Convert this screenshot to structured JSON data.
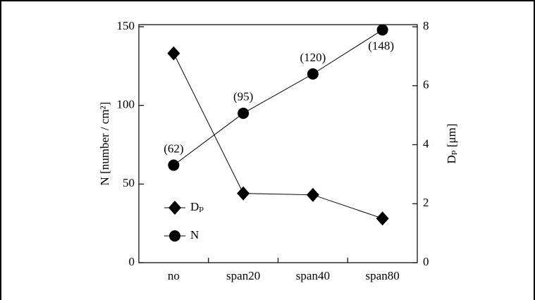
{
  "chart_data": {
    "type": "line",
    "categories": [
      "no",
      "span20",
      "span40",
      "span80"
    ],
    "series": [
      {
        "name": "Dₚ",
        "color": "#000000",
        "marker": "diamond",
        "axis": "y2",
        "values": [
          7.1,
          2.35,
          2.3,
          1.5
        ]
      },
      {
        "name": "N",
        "color": "#000000",
        "marker": "circle",
        "values": [
          62,
          95,
          120,
          148
        ],
        "value_labels": [
          "(62)",
          "(95)",
          "(120)",
          "(148)"
        ]
      }
    ],
    "ylabel": "N [number / cm²]",
    "y2label": "Dₚ [μm]",
    "ylim": [
      0,
      150
    ],
    "yticks": [
      0,
      50,
      100,
      150
    ],
    "y2lim": [
      0,
      8
    ],
    "y2ticks": [
      0,
      2,
      4,
      6,
      8
    ],
    "legend": "lower left"
  }
}
